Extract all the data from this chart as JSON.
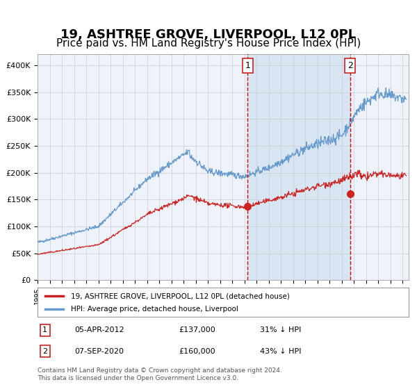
{
  "title": "19, ASHTREE GROVE, LIVERPOOL, L12 0PL",
  "subtitle": "Price paid vs. HM Land Registry's House Price Index (HPI)",
  "title_fontsize": 13,
  "subtitle_fontsize": 11,
  "background_color": "#ffffff",
  "plot_bg_color": "#eef3fb",
  "grid_color": "#cccccc",
  "hpi_color": "#6699cc",
  "hpi_fill_color": "#d0e0f0",
  "price_color": "#cc2222",
  "marker_color": "#cc2222",
  "vline_color": "#dd0000",
  "ylim": [
    0,
    420000
  ],
  "yticks": [
    0,
    50000,
    100000,
    150000,
    200000,
    250000,
    300000,
    350000,
    400000
  ],
  "ytick_labels": [
    "£0",
    "£50K",
    "£100K",
    "£150K",
    "£200K",
    "£250K",
    "£300K",
    "£350K",
    "£400K"
  ],
  "xlim_start": 1995.0,
  "xlim_end": 2025.5,
  "xtick_years": [
    1995,
    1996,
    1997,
    1998,
    1999,
    2000,
    2001,
    2002,
    2003,
    2004,
    2005,
    2006,
    2007,
    2008,
    2009,
    2010,
    2011,
    2012,
    2013,
    2014,
    2015,
    2016,
    2017,
    2018,
    2019,
    2020,
    2021,
    2022,
    2023,
    2024,
    2025
  ],
  "sale1_x": 2012.27,
  "sale1_y": 137000,
  "sale2_x": 2020.68,
  "sale2_y": 160000,
  "legend_label1": "19, ASHTREE GROVE, LIVERPOOL, L12 0PL (detached house)",
  "legend_label2": "HPI: Average price, detached house, Liverpool",
  "table_row1": [
    "1",
    "05-APR-2012",
    "£137,000",
    "31% ↓ HPI"
  ],
  "table_row2": [
    "2",
    "07-SEP-2020",
    "£160,000",
    "43% ↓ HPI"
  ],
  "footer": "Contains HM Land Registry data © Crown copyright and database right 2024.\nThis data is licensed under the Open Government Licence v3.0.",
  "shaded_region_start": 2012.27,
  "shaded_region_end": 2020.68
}
